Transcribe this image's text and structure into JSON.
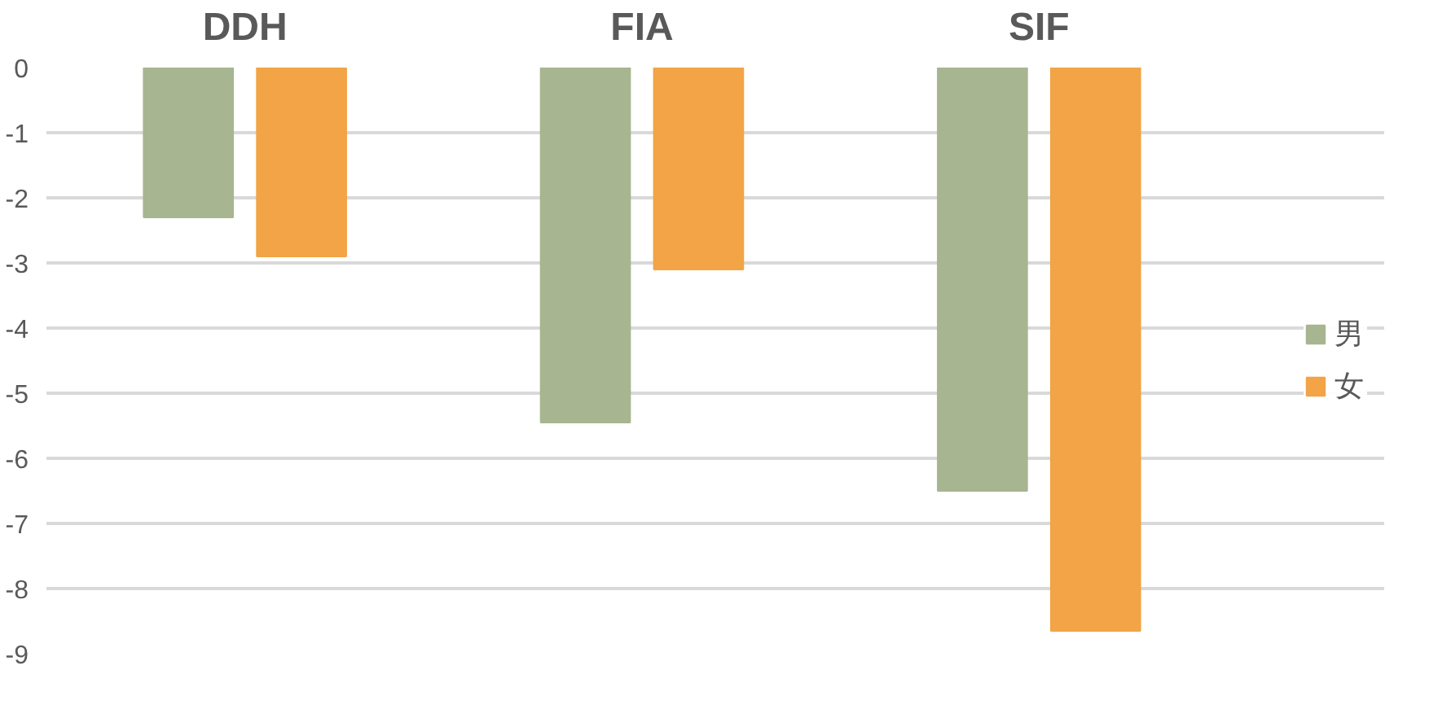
{
  "chart_data": {
    "type": "bar",
    "categories": [
      "DDH",
      "FIA",
      "SIF"
    ],
    "series": [
      {
        "name": "男",
        "color": "#a7b590",
        "values": [
          -2.3,
          -5.45,
          -6.5
        ]
      },
      {
        "name": "女",
        "color": "#f2a446",
        "values": [
          -2.9,
          -3.1,
          -8.65
        ]
      }
    ],
    "ylim": [
      -9,
      0
    ],
    "yticks": [
      0,
      -1,
      -2,
      -3,
      -4,
      -5,
      -6,
      -7,
      -8,
      -9
    ],
    "grid": "y",
    "legend": "right"
  }
}
